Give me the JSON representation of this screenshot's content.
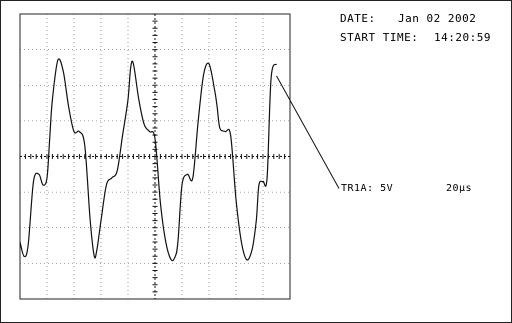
{
  "header": {
    "date_label": "DATE:",
    "date_value": "Jan 02 2002",
    "start_label": "START TIME:",
    "start_value": "14:20:59"
  },
  "chart_data": {
    "type": "line",
    "channel_label": "TR1A: 5V",
    "time_label": "20µs",
    "x_divisions": 10,
    "y_divisions": 8,
    "xlim": [
      0,
      10
    ],
    "ylim": [
      -4,
      4
    ],
    "grid": true,
    "series": [
      {
        "x": [
          0,
          0.15,
          0.3,
          0.5,
          0.7,
          0.85,
          1.0,
          1.1,
          1.2,
          1.4,
          1.6,
          1.8,
          2.0,
          2.2,
          2.4,
          2.6,
          2.75,
          2.85,
          3.0,
          3.2,
          3.4,
          3.6,
          3.8,
          4.0,
          4.1,
          4.2,
          4.4,
          4.6,
          4.8,
          5.0,
          5.2,
          5.4,
          5.6,
          5.75,
          5.85,
          6.0,
          6.2,
          6.4,
          6.6,
          6.8,
          7.0,
          7.2,
          7.3,
          7.4,
          7.6,
          7.8,
          8.0,
          8.2,
          8.4,
          8.6,
          8.75,
          8.85,
          9.0,
          9.15,
          9.3,
          9.5
        ],
        "values": [
          -2.4,
          -2.8,
          -2.5,
          -0.7,
          -0.5,
          -0.8,
          -0.6,
          0.5,
          1.6,
          2.7,
          2.4,
          1.4,
          0.7,
          0.7,
          0.3,
          -1.8,
          -2.8,
          -2.6,
          -1.8,
          -0.8,
          -0.6,
          -0.4,
          0.6,
          1.6,
          2.5,
          2.6,
          1.6,
          0.9,
          0.7,
          0.5,
          -1.3,
          -2.4,
          -2.9,
          -2.8,
          -2.4,
          -0.8,
          -0.5,
          -0.6,
          1.0,
          2.3,
          2.6,
          1.9,
          1.4,
          0.8,
          0.7,
          0.6,
          -1.2,
          -2.4,
          -2.9,
          -2.6,
          -1.8,
          -0.8,
          -0.7,
          -0.6,
          2.2,
          2.6
        ]
      }
    ]
  }
}
